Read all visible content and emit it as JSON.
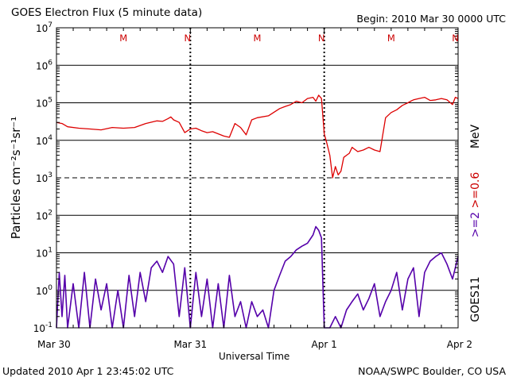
{
  "header": {
    "title": "GOES Electron Flux (5 minute data)",
    "begin": "Begin: 2010 Mar 30 0000 UTC"
  },
  "footer": {
    "updated": "Updated 2010 Apr  1 23:45:02 UTC",
    "credit": "NOAA/SWPC Boulder, CO USA"
  },
  "chart_data": {
    "type": "line",
    "title": "GOES Electron Flux (5 minute data)",
    "xlabel": "Universal Time",
    "ylabel": "Particles cm⁻²s⁻¹sr⁻¹",
    "y_scale": "log",
    "ylim": [
      0.1,
      10000000
    ],
    "xlim": [
      0,
      72
    ],
    "x_unit": "hours since 2010 Mar 30 0000 UTC",
    "x_tick_labels": [
      "Mar 30",
      "Mar 31",
      "Apr 1",
      "Apr 2"
    ],
    "x_tick_values": [
      0,
      24,
      48,
      72
    ],
    "y_tick_exponents": [
      -1,
      0,
      1,
      2,
      3,
      4,
      5,
      6,
      7
    ],
    "reference_line": {
      "value": 1000,
      "style": "dashed"
    },
    "right_labels": {
      "series_energy": ">=2  >=0.6",
      "unit": "MeV",
      "satellite": "GOES11"
    },
    "markers": [
      {
        "label": "M",
        "x": 12
      },
      {
        "label": "N",
        "x": 23.5
      },
      {
        "label": "M",
        "x": 36
      },
      {
        "label": "N",
        "x": 47.5
      },
      {
        "label": "M",
        "x": 60
      },
      {
        "label": "N",
        "x": 71.5
      }
    ],
    "series": [
      {
        "name": ">=0.6 MeV",
        "color": "#dd0000",
        "x": [
          0,
          1,
          2,
          4,
          6,
          8,
          10,
          12,
          14,
          16,
          18,
          19,
          20,
          20.5,
          21,
          22,
          23,
          24,
          25,
          26,
          27,
          28,
          30,
          31,
          32,
          33,
          34,
          35,
          36,
          38,
          40,
          41,
          42,
          43,
          44,
          45,
          46,
          46.5,
          47,
          47.5,
          48,
          48.5,
          49,
          49.5,
          50,
          50.5,
          51,
          51.5,
          52,
          52.5,
          53,
          54,
          55,
          56,
          57,
          58,
          59,
          60,
          61,
          62,
          63,
          63.5,
          64,
          65,
          66,
          67,
          68,
          69,
          70,
          71,
          71.5,
          72
        ],
        "y": [
          30000,
          28000,
          23000,
          21000,
          20000,
          19000,
          22000,
          21000,
          22000,
          28000,
          33000,
          32000,
          38000,
          42000,
          35000,
          30000,
          16000,
          20000,
          21000,
          18000,
          16000,
          17000,
          13000,
          12000,
          28000,
          22000,
          14000,
          35000,
          40000,
          45000,
          70000,
          80000,
          90000,
          110000,
          100000,
          130000,
          140000,
          110000,
          160000,
          130000,
          15000,
          8000,
          4000,
          1000,
          2000,
          1200,
          1500,
          3500,
          4000,
          4500,
          6500,
          5000,
          5500,
          6500,
          5500,
          5000,
          40000,
          55000,
          65000,
          85000,
          100000,
          110000,
          120000,
          130000,
          140000,
          115000,
          120000,
          130000,
          120000,
          90000,
          140000,
          130000
        ]
      },
      {
        "name": ">=2 MeV",
        "color": "#5500aa",
        "x": [
          0,
          0.5,
          1,
          1.5,
          2,
          3,
          4,
          5,
          6,
          7,
          8,
          9,
          10,
          11,
          12,
          13,
          14,
          15,
          16,
          17,
          18,
          19,
          20,
          21,
          22,
          23,
          24,
          25,
          26,
          27,
          28,
          29,
          30,
          31,
          32,
          33,
          34,
          35,
          36,
          37,
          38,
          39,
          40,
          41,
          42,
          43,
          44,
          45,
          46,
          46.5,
          47,
          47.5,
          48,
          49,
          50,
          51,
          52,
          53,
          54,
          55,
          56,
          57,
          58,
          59,
          60,
          61,
          62,
          63,
          64,
          65,
          66,
          67,
          68,
          69,
          70,
          71,
          72
        ],
        "y": [
          0.1,
          3,
          0.2,
          2.5,
          0.1,
          1.5,
          0.1,
          3,
          0.1,
          2,
          0.3,
          1.5,
          0.1,
          1,
          0.1,
          2.5,
          0.2,
          3,
          0.5,
          4,
          6,
          3,
          8,
          5,
          0.2,
          4,
          0.1,
          3,
          0.2,
          2,
          0.1,
          1.5,
          0.1,
          2.5,
          0.2,
          0.5,
          0.1,
          0.5,
          0.2,
          0.3,
          0.1,
          1,
          2.5,
          6,
          8,
          12,
          15,
          18,
          30,
          50,
          40,
          25,
          0.1,
          0.1,
          0.2,
          0.1,
          0.3,
          0.5,
          0.8,
          0.3,
          0.6,
          1.5,
          0.2,
          0.5,
          1,
          3,
          0.3,
          2,
          4,
          0.2,
          3,
          6,
          8,
          10,
          5,
          2,
          8
        ]
      }
    ]
  }
}
